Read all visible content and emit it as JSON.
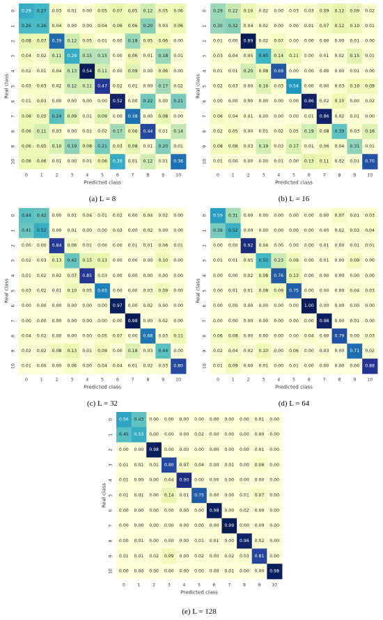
{
  "chart_data": [
    {
      "type": "heatmap",
      "caption": "(a) L = 8",
      "xlabel": "Predicted class",
      "ylabel": "Real class",
      "categories": [
        "0",
        "1",
        "2",
        "3",
        "4",
        "5",
        "6",
        "7",
        "8",
        "9",
        "10"
      ],
      "values": [
        [
          0.29,
          0.27,
          0.03,
          0.01,
          0.0,
          0.05,
          0.07,
          0.05,
          0.12,
          0.05,
          0.06
        ],
        [
          0.26,
          0.26,
          0.04,
          0.0,
          0.0,
          0.04,
          0.06,
          0.06,
          0.2,
          0.03,
          0.06
        ],
        [
          0.08,
          0.07,
          0.39,
          0.12,
          0.05,
          0.01,
          0.0,
          0.18,
          0.05,
          0.06,
          0.0
        ],
        [
          0.04,
          0.02,
          0.11,
          0.29,
          0.15,
          0.15,
          0.0,
          0.06,
          0.01,
          0.18,
          0.01
        ],
        [
          0.02,
          0.01,
          0.04,
          0.13,
          0.54,
          0.11,
          0.0,
          0.09,
          0.0,
          0.06,
          0.0
        ],
        [
          0.03,
          0.03,
          0.02,
          0.12,
          0.11,
          0.47,
          0.02,
          0.01,
          0.0,
          0.17,
          0.02
        ],
        [
          0.01,
          0.03,
          0.0,
          0.0,
          0.0,
          0.0,
          0.52,
          0.0,
          0.22,
          0.0,
          0.21
        ],
        [
          0.06,
          0.05,
          0.24,
          0.09,
          0.01,
          0.09,
          0.0,
          0.38,
          0.0,
          0.08,
          0.0
        ],
        [
          0.06,
          0.11,
          0.03,
          0.0,
          0.01,
          0.02,
          0.17,
          0.06,
          0.44,
          0.01,
          0.14
        ],
        [
          0.06,
          0.05,
          0.1,
          0.19,
          0.08,
          0.21,
          0.03,
          0.08,
          0.01,
          0.2,
          0.01
        ],
        [
          0.06,
          0.06,
          0.01,
          0.0,
          0.01,
          0.06,
          0.29,
          0.01,
          0.12,
          0.01,
          0.38
        ]
      ]
    },
    {
      "type": "heatmap",
      "caption": "(b) L = 16",
      "xlabel": "Predicted class",
      "ylabel": "Real class",
      "categories": [
        "0",
        "1",
        "2",
        "3",
        "4",
        "5",
        "6",
        "7",
        "8",
        "9",
        "10"
      ],
      "values": [
        [
          0.29,
          0.22,
          0.1,
          0.02,
          0.0,
          0.03,
          0.03,
          0.09,
          0.12,
          0.09,
          0.02
        ],
        [
          0.3,
          0.32,
          0.04,
          0.02,
          0.0,
          0.0,
          0.01,
          0.07,
          0.12,
          0.1,
          0.01
        ],
        [
          0.01,
          0.0,
          0.89,
          0.02,
          0.07,
          0.0,
          0.0,
          0.0,
          0.0,
          0.01,
          0.0
        ],
        [
          0.03,
          0.04,
          0.05,
          0.45,
          0.14,
          0.11,
          0.0,
          0.01,
          0.02,
          0.15,
          0.01
        ],
        [
          0.01,
          0.01,
          0.2,
          0.08,
          0.69,
          0.0,
          0.0,
          0.0,
          0.0,
          0.01,
          0.0
        ],
        [
          0.02,
          0.03,
          0.0,
          0.16,
          0.03,
          0.54,
          0.0,
          0.0,
          0.03,
          0.1,
          0.09
        ],
        [
          0.0,
          0.0,
          0.0,
          0.0,
          0.0,
          0.0,
          0.86,
          0.02,
          0.1,
          0.0,
          0.02
        ],
        [
          0.06,
          0.04,
          0.01,
          0.0,
          0.0,
          0.0,
          0.01,
          0.86,
          0.02,
          0.01,
          0.0
        ],
        [
          0.02,
          0.05,
          0.0,
          0.01,
          0.02,
          0.05,
          0.19,
          0.08,
          0.39,
          0.03,
          0.16
        ],
        [
          0.08,
          0.08,
          0.03,
          0.19,
          0.03,
          0.17,
          0.01,
          0.06,
          0.04,
          0.31,
          0.01
        ],
        [
          0.01,
          0.0,
          0.0,
          0.0,
          0.01,
          0.0,
          0.13,
          0.11,
          0.02,
          0.01,
          0.7
        ]
      ]
    },
    {
      "type": "heatmap",
      "caption": "(c) L = 32",
      "xlabel": "Predicted class",
      "ylabel": "Real class",
      "categories": [
        "0",
        "1",
        "2",
        "3",
        "4",
        "5",
        "6",
        "7",
        "8",
        "9",
        "10"
      ],
      "values": [
        [
          0.44,
          0.42,
          0.0,
          0.01,
          0.04,
          0.01,
          0.02,
          0.0,
          0.04,
          0.02,
          0.0
        ],
        [
          0.41,
          0.52,
          0.0,
          0.01,
          0.0,
          0.0,
          0.03,
          0.0,
          0.02,
          0.0,
          0.0
        ],
        [
          0.0,
          0.0,
          0.84,
          0.06,
          0.01,
          0.0,
          0.0,
          0.01,
          0.01,
          0.06,
          0.01
        ],
        [
          0.02,
          0.03,
          0.13,
          0.42,
          0.15,
          0.13,
          0.0,
          0.0,
          0.0,
          0.1,
          0.0
        ],
        [
          0.01,
          0.02,
          0.02,
          0.07,
          0.85,
          0.03,
          0.0,
          0.0,
          0.0,
          0.0,
          0.0
        ],
        [
          0.03,
          0.02,
          0.01,
          0.1,
          0.05,
          0.65,
          0.0,
          0.0,
          0.03,
          0.09,
          0.0
        ],
        [
          0.0,
          0.0,
          0.0,
          0.0,
          0.0,
          0.0,
          0.97,
          0.0,
          0.02,
          0.0,
          0.0
        ],
        [
          0.0,
          0.0,
          0.0,
          0.0,
          0.0,
          0.0,
          0.0,
          0.98,
          0.0,
          0.02,
          0.0
        ],
        [
          0.04,
          0.02,
          0.0,
          0.0,
          0.0,
          0.05,
          0.07,
          0.0,
          0.68,
          0.03,
          0.11
        ],
        [
          0.02,
          0.02,
          0.08,
          0.13,
          0.01,
          0.09,
          0.0,
          0.18,
          0.03,
          0.44,
          0.0
        ],
        [
          0.01,
          0.0,
          0.0,
          0.06,
          0.0,
          0.04,
          0.04,
          0.01,
          0.02,
          0.03,
          0.8
        ]
      ]
    },
    {
      "type": "heatmap",
      "caption": "(d) L = 64",
      "xlabel": "Predicted class",
      "ylabel": "Real class",
      "categories": [
        "0",
        "1",
        "2",
        "3",
        "4",
        "5",
        "6",
        "7",
        "8",
        "9",
        "10"
      ],
      "values": [
        [
          0.59,
          0.31,
          0.0,
          0.0,
          0.0,
          0.0,
          0.0,
          0.0,
          0.07,
          0.01,
          0.03
        ],
        [
          0.39,
          0.52,
          0.0,
          0.0,
          0.0,
          0.0,
          0.0,
          0.0,
          0.02,
          0.03,
          0.04
        ],
        [
          0.0,
          0.0,
          0.92,
          0.04,
          0.0,
          0.0,
          0.0,
          0.01,
          0.0,
          0.01,
          0.01
        ],
        [
          0.01,
          0.01,
          0.05,
          0.5,
          0.23,
          0.09,
          0.0,
          0.01,
          0.0,
          0.09,
          0.0
        ],
        [
          0.0,
          0.0,
          0.02,
          0.08,
          0.76,
          0.13,
          0.0,
          0.0,
          0.0,
          0.0,
          0.0
        ],
        [
          0.0,
          0.01,
          0.01,
          0.08,
          0.09,
          0.75,
          0.0,
          0.0,
          0.0,
          0.04,
          0.03
        ],
        [
          0.0,
          0.0,
          0.0,
          0.0,
          0.0,
          0.0,
          1.0,
          0.0,
          0.0,
          0.0,
          0.0
        ],
        [
          0.0,
          0.0,
          0.0,
          0.0,
          0.0,
          0.0,
          0.0,
          0.98,
          0.0,
          0.01,
          0.0
        ],
        [
          0.06,
          0.08,
          0.0,
          0.0,
          0.0,
          0.0,
          0.04,
          0.0,
          0.79,
          0.0,
          0.03
        ],
        [
          0.02,
          0.04,
          0.02,
          0.1,
          0.0,
          0.06,
          0.0,
          0.03,
          0.0,
          0.71,
          0.02
        ],
        [
          0.01,
          0.09,
          0.0,
          0.01,
          0.0,
          0.01,
          0.0,
          0.0,
          0.0,
          0.0,
          0.88
        ]
      ]
    },
    {
      "type": "heatmap",
      "caption": "(e) L = 128",
      "xlabel": "Predicted class",
      "ylabel": "Real class",
      "categories": [
        "0",
        "1",
        "2",
        "3",
        "4",
        "5",
        "6",
        "7",
        "8",
        "9",
        "10"
      ],
      "values": [
        [
          0.56,
          0.43,
          0.0,
          0.0,
          0.0,
          0.0,
          0.0,
          0.0,
          0.0,
          0.01,
          0.0
        ],
        [
          0.45,
          0.53,
          0.0,
          0.0,
          0.0,
          0.02,
          0.0,
          0.0,
          0.0,
          0.0,
          0.0
        ],
        [
          0.0,
          0.0,
          0.98,
          0.0,
          0.0,
          0.0,
          0.0,
          0.0,
          0.0,
          0.01,
          0.0
        ],
        [
          0.01,
          0.01,
          0.01,
          0.8,
          0.07,
          0.04,
          0.0,
          0.01,
          0.0,
          0.06,
          0.0
        ],
        [
          0.01,
          0.0,
          0.0,
          0.04,
          0.9,
          0.0,
          0.0,
          0.0,
          0.0,
          0.0,
          0.0
        ],
        [
          0.01,
          0.01,
          0.0,
          0.14,
          0.01,
          0.75,
          0.0,
          0.0,
          0.01,
          0.07,
          0.0
        ],
        [
          0.0,
          0.0,
          0.0,
          0.0,
          0.0,
          0.0,
          0.98,
          0.0,
          0.02,
          0.0,
          0.0
        ],
        [
          0.0,
          0.0,
          0.0,
          0.0,
          0.0,
          0.0,
          0.0,
          0.99,
          0.0,
          0.0,
          0.0
        ],
        [
          0.0,
          0.01,
          0.0,
          0.0,
          0.0,
          0.01,
          0.01,
          0.0,
          0.96,
          0.02,
          0.0
        ],
        [
          0.01,
          0.01,
          0.02,
          0.09,
          0.0,
          0.02,
          0.0,
          0.02,
          0.03,
          0.81,
          0.0
        ],
        [
          0.0,
          0.0,
          0.0,
          0.0,
          0.0,
          0.0,
          0.0,
          0.01,
          0.0,
          0.0,
          0.98
        ]
      ]
    }
  ]
}
